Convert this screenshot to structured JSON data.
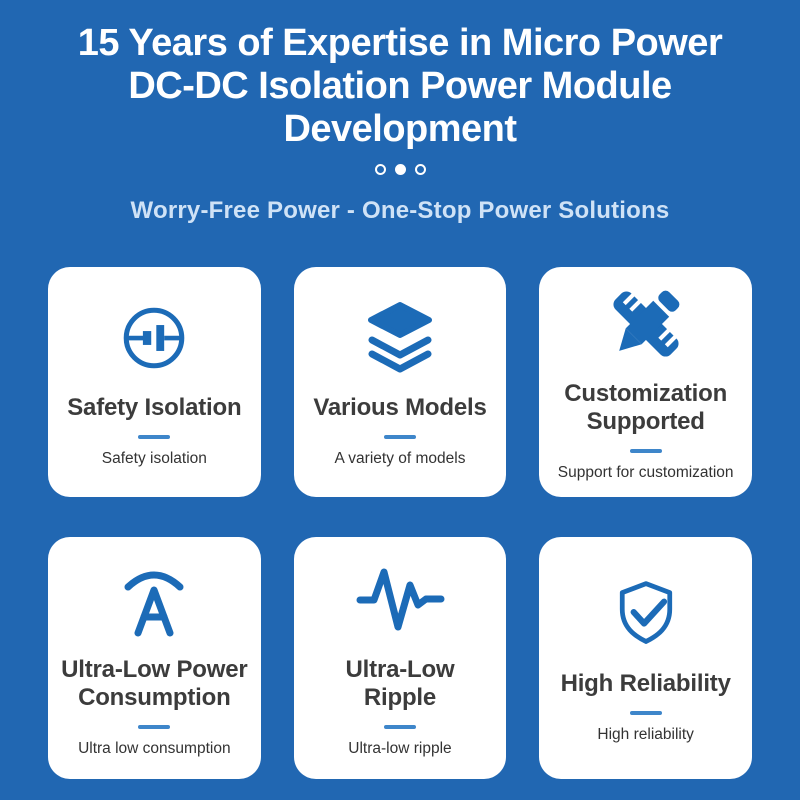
{
  "colors": {
    "background": "#2167b2",
    "accent": "#1c6bb7",
    "divider": "#3e86ca",
    "card_background": "#ffffff",
    "title_text": "#3c3c3c",
    "subtitle_text": "#333333",
    "hero_title_text": "#ffffff",
    "hero_subtitle_text": "#cfe2f6"
  },
  "hero": {
    "title_lines": {
      "0": "15 Years of Expertise in Micro Power",
      "1": "DC-DC Isolation Power Module",
      "2": "Development"
    },
    "subtitle": "Worry-Free Power - One-Stop Power Solutions",
    "carousel_dots": [
      {
        "label": "slide-1",
        "active": false
      },
      {
        "label": "slide-2",
        "active": true
      },
      {
        "label": "slide-3",
        "active": false
      }
    ]
  },
  "cards": [
    {
      "icon": "isolation-circuit-icon",
      "title": "Safety Isolation",
      "subtitle": "Safety isolation"
    },
    {
      "icon": "layers-icon",
      "title": "Various Models",
      "subtitle": "A variety of models"
    },
    {
      "icon": "pencil-ruler-icon",
      "title": "Customization Supported",
      "subtitle": "Support for customization"
    },
    {
      "icon": "ampere-arc-icon",
      "title": "Ultra-Low Power Consumption",
      "subtitle": "Ultra low consumption"
    },
    {
      "icon": "waveform-icon",
      "title": "Ultra-Low Ripple",
      "subtitle": "Ultra-low ripple"
    },
    {
      "icon": "shield-check-icon",
      "title": "High Reliability",
      "subtitle": "High reliability"
    }
  ]
}
